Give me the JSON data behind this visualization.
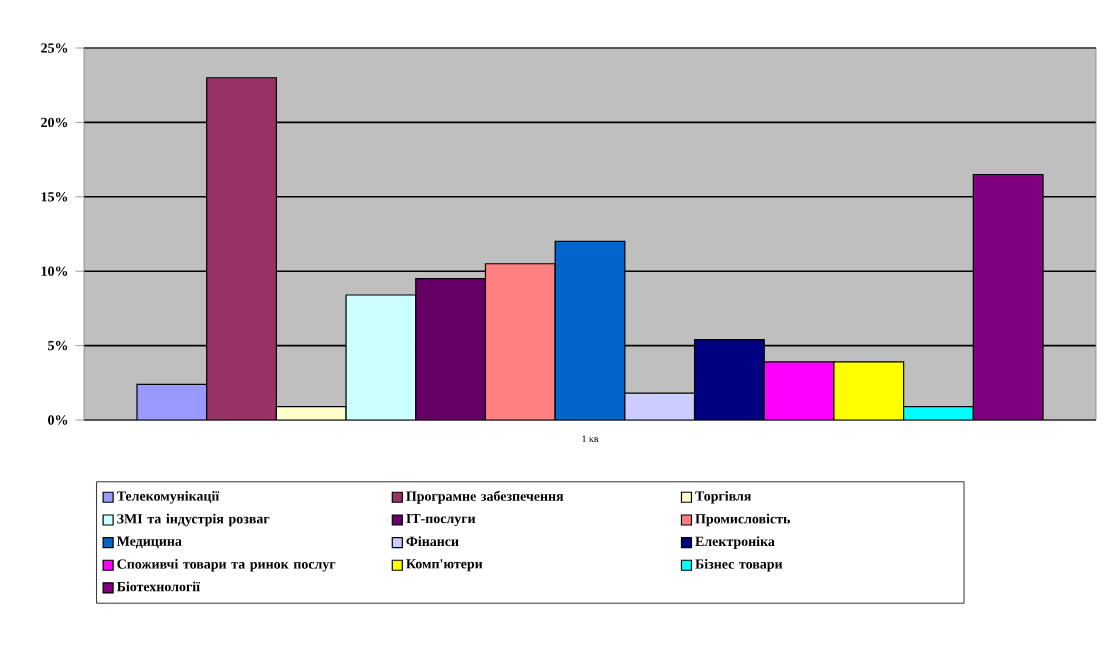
{
  "chart_data": {
    "type": "bar",
    "categories": [
      "1 кв"
    ],
    "series": [
      {
        "name": "Телекомунікації",
        "color": "#9999ff",
        "values": [
          2.4
        ]
      },
      {
        "name": "Програмне забезпечення",
        "color": "#993366",
        "values": [
          23
        ]
      },
      {
        "name": "Торгівля",
        "color": "#ffffcc",
        "values": [
          0.9
        ]
      },
      {
        "name": "ЗМІ та індустрія розваг",
        "color": "#ccffff",
        "values": [
          8.4
        ]
      },
      {
        "name": "ІТ-послуги",
        "color": "#660066",
        "values": [
          9.5
        ]
      },
      {
        "name": "Промисловість",
        "color": "#ff8080",
        "values": [
          10.5
        ]
      },
      {
        "name": "Медицина",
        "color": "#0066cc",
        "values": [
          12
        ]
      },
      {
        "name": "Фінанси",
        "color": "#ccccff",
        "values": [
          1.8
        ]
      },
      {
        "name": "Електроніка",
        "color": "#000080",
        "values": [
          5.4
        ]
      },
      {
        "name": "Споживчі товари та ринок послуг",
        "color": "#ff00ff",
        "values": [
          3.9
        ]
      },
      {
        "name": "Комп'ютери",
        "color": "#ffff00",
        "values": [
          3.9
        ]
      },
      {
        "name": "Бізнес товари",
        "color": "#00ffff",
        "values": [
          0.9
        ]
      },
      {
        "name": "Біотехнології",
        "color": "#800080",
        "values": [
          16.5
        ]
      }
    ],
    "ylim": [
      0,
      25
    ],
    "yticks": [
      {
        "value": 0,
        "label": "0%"
      },
      {
        "value": 5,
        "label": "5%"
      },
      {
        "value": 10,
        "label": "10%"
      },
      {
        "value": 15,
        "label": "15%"
      },
      {
        "value": 20,
        "label": "20%"
      },
      {
        "value": 25,
        "label": "25%"
      }
    ],
    "grid": "y",
    "legend": "bottom"
  }
}
